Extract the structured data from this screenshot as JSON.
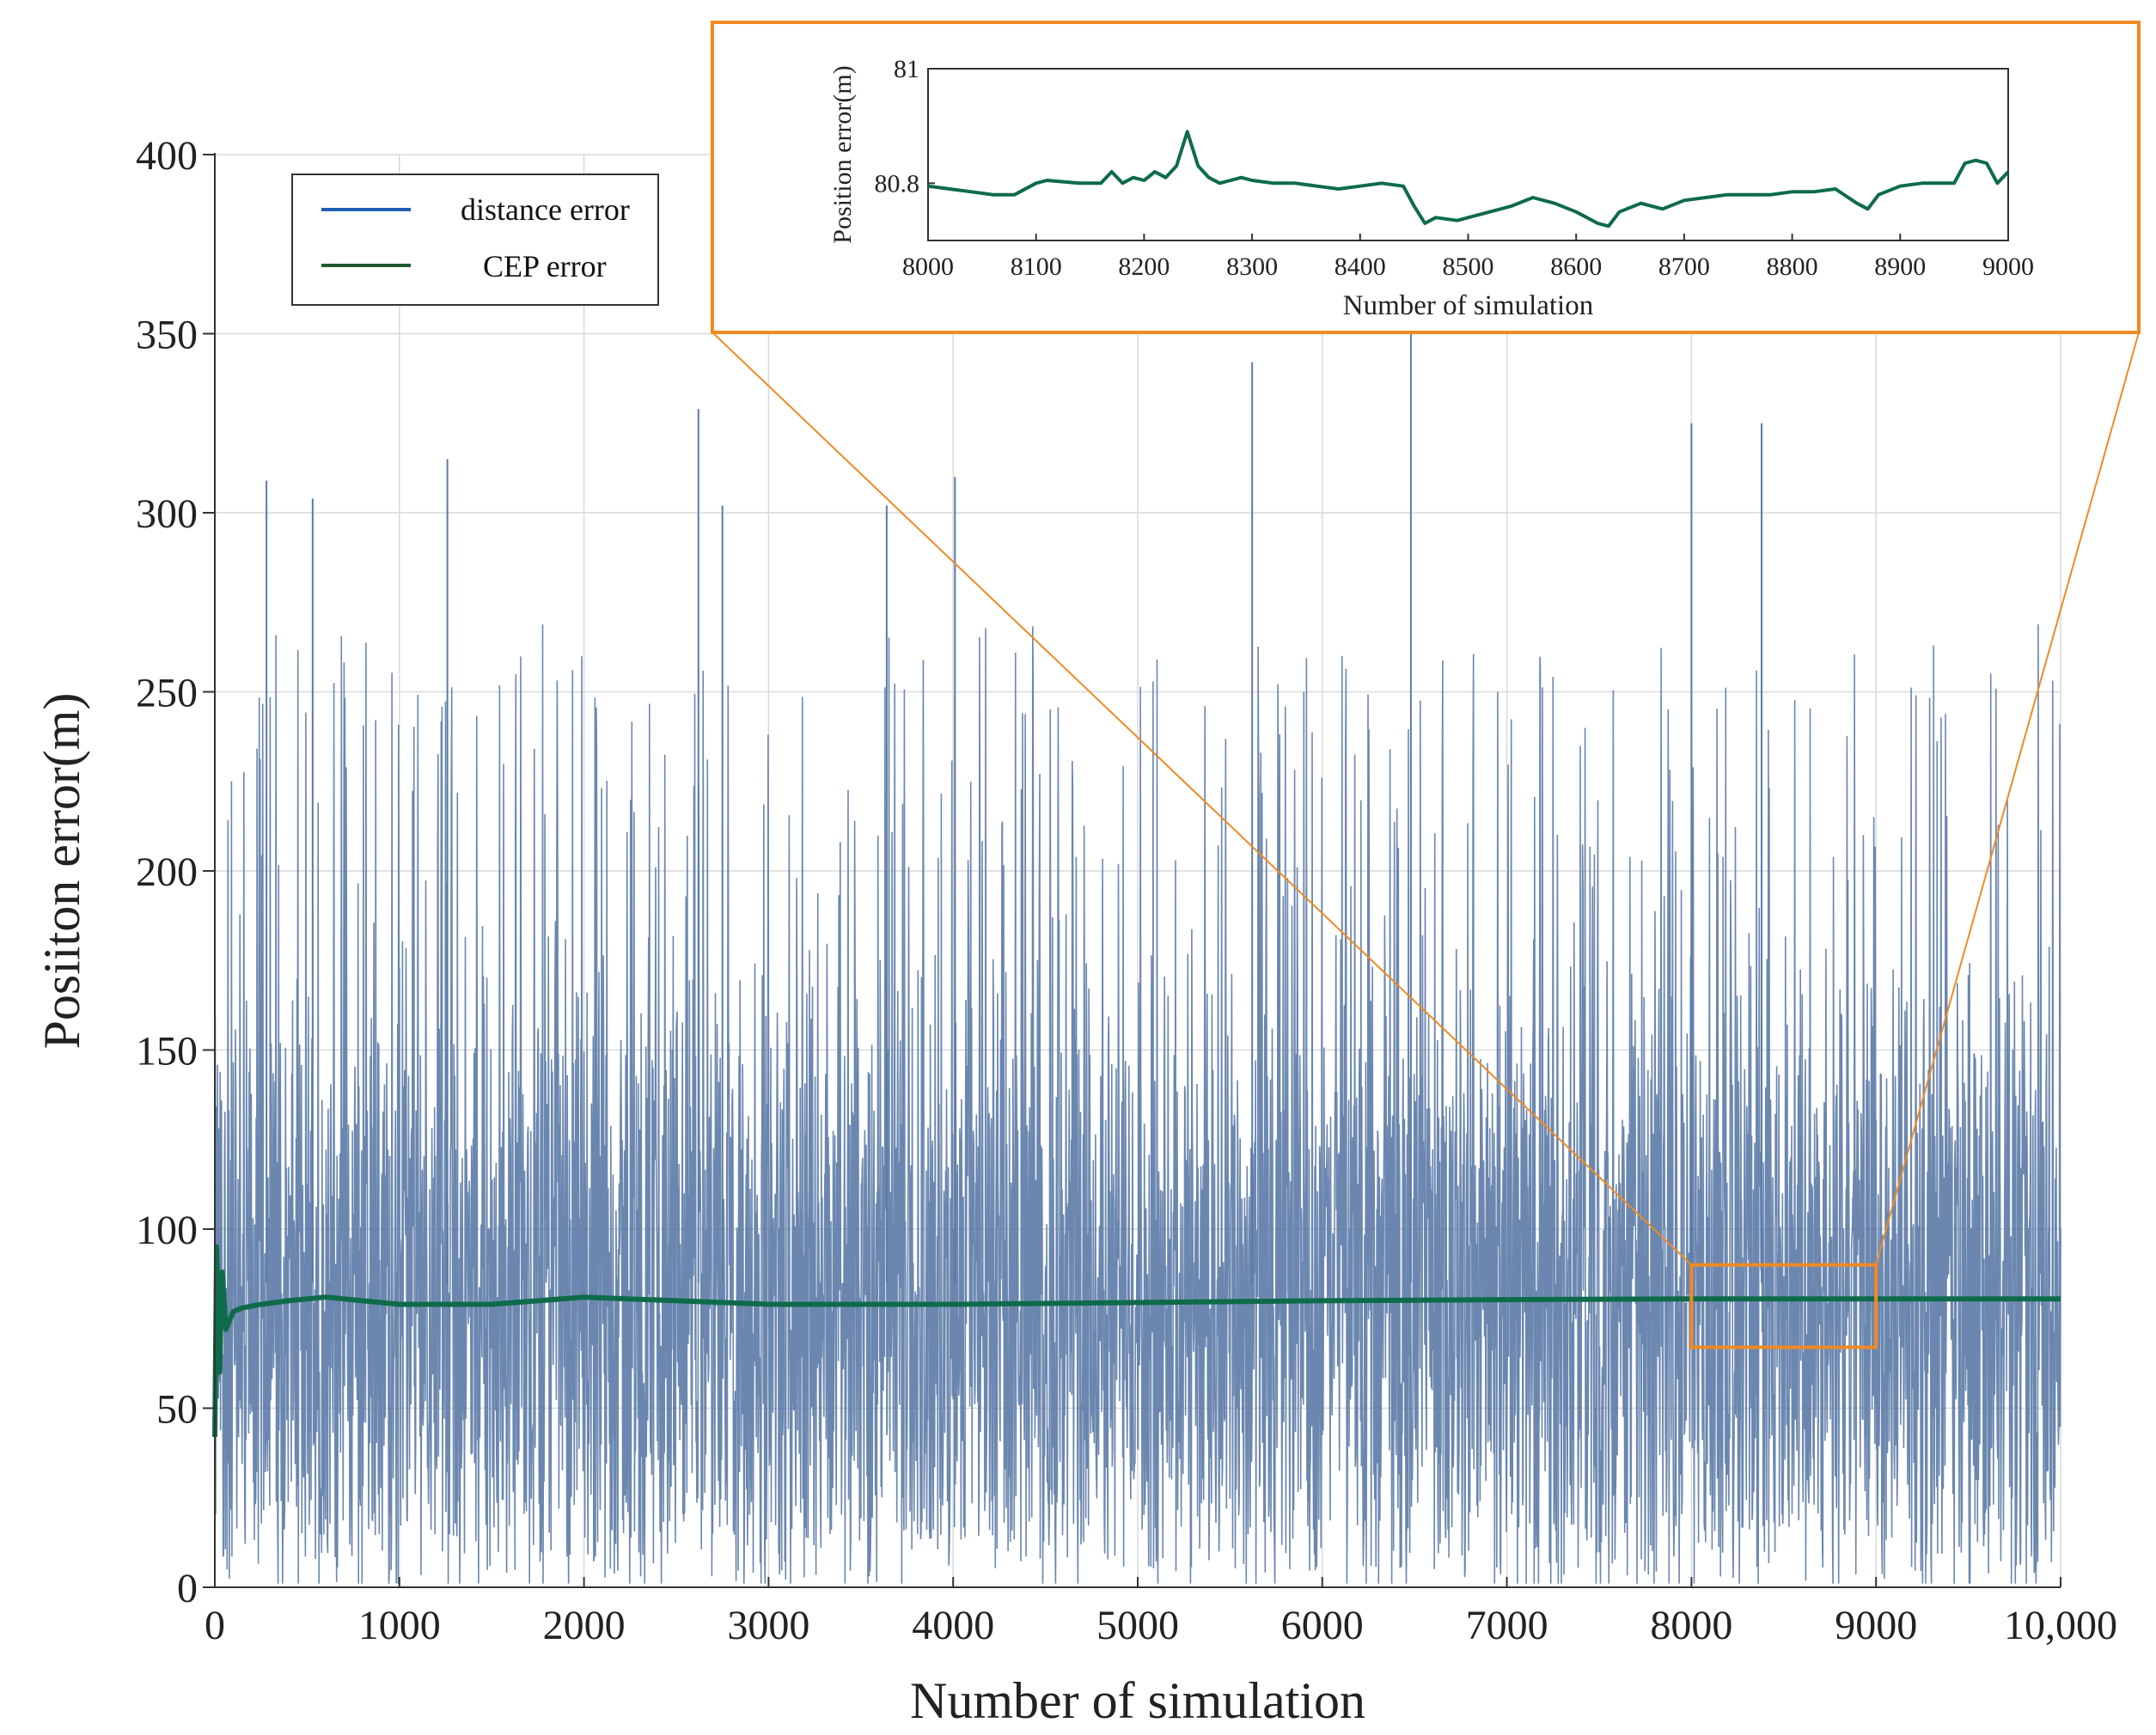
{
  "chart_data": [
    {
      "type": "line",
      "role": "main",
      "title": "",
      "xlabel": "Number of simulation",
      "ylabel": "Posiiton error(m)",
      "xlim": [
        0,
        10000
      ],
      "ylim": [
        0,
        400
      ],
      "xticks": [
        0,
        1000,
        2000,
        3000,
        4000,
        5000,
        6000,
        7000,
        8000,
        9000,
        10000
      ],
      "xtick_labels": [
        "0",
        "1000",
        "2000",
        "3000",
        "4000",
        "5000",
        "6000",
        "7000",
        "8000",
        "9000",
        "10,000"
      ],
      "yticks": [
        0,
        50,
        100,
        150,
        200,
        250,
        300,
        350,
        400
      ],
      "ytick_labels": [
        "0",
        "50",
        "100",
        "150",
        "200",
        "250",
        "300",
        "350",
        "400"
      ],
      "grid": true,
      "legend_position": "top-left",
      "series": [
        {
          "name": "distance error",
          "color": "#5b7aa6",
          "description": "noisy per-simulation distance error fluctuating between about 0 and 350 m",
          "range": [
            0,
            352
          ],
          "mean": 80,
          "peaks": [
            {
              "x": 280,
              "y": 309
            },
            {
              "x": 530,
              "y": 304
            },
            {
              "x": 1260,
              "y": 315
            },
            {
              "x": 2620,
              "y": 329
            },
            {
              "x": 2750,
              "y": 302
            },
            {
              "x": 3640,
              "y": 302
            },
            {
              "x": 4010,
              "y": 310
            },
            {
              "x": 5620,
              "y": 342
            },
            {
              "x": 6480,
              "y": 352
            },
            {
              "x": 8000,
              "y": 325
            },
            {
              "x": 8380,
              "y": 325
            }
          ]
        },
        {
          "name": "CEP error",
          "color": "#0e6b4a",
          "x": [
            0,
            10,
            25,
            40,
            60,
            100,
            150,
            250,
            400,
            600,
            800,
            1000,
            1500,
            2000,
            2500,
            3000,
            3500,
            4000,
            5000,
            6000,
            7000,
            8000,
            9000,
            10000
          ],
          "y": [
            42,
            95,
            60,
            88,
            72,
            77,
            78,
            79,
            80,
            81,
            80,
            79,
            79,
            81,
            80,
            79,
            79,
            79,
            79.5,
            80,
            80.3,
            80.5,
            80.5,
            80.5
          ]
        }
      ],
      "annotations": [
        {
          "type": "zoom-box",
          "x_range": [
            8000,
            9000
          ],
          "y_range": [
            67,
            90
          ],
          "color": "#f08a24"
        }
      ]
    },
    {
      "type": "line",
      "role": "inset",
      "title": "",
      "xlabel": "Number of simulation",
      "ylabel": "Position error(m)",
      "xlim": [
        8000,
        9000
      ],
      "ylim": [
        80.7,
        81.0
      ],
      "xticks": [
        8000,
        8100,
        8200,
        8300,
        8400,
        8500,
        8600,
        8700,
        8800,
        8900,
        9000
      ],
      "xtick_labels": [
        "8000",
        "8100",
        "8200",
        "8300",
        "8400",
        "8500",
        "8600",
        "8700",
        "8800",
        "8900",
        "9000"
      ],
      "yticks": [
        80.8,
        81.0
      ],
      "ytick_labels": [
        "80.8",
        "81"
      ],
      "grid": false,
      "series": [
        {
          "name": "CEP error",
          "color": "#0e6b4a",
          "x": [
            8000,
            8020,
            8040,
            8060,
            8080,
            8100,
            8110,
            8140,
            8160,
            8170,
            8180,
            8190,
            8200,
            8210,
            8220,
            8230,
            8235,
            8240,
            8245,
            8250,
            8260,
            8270,
            8280,
            8290,
            8300,
            8320,
            8340,
            8360,
            8380,
            8400,
            8420,
            8440,
            8450,
            8460,
            8470,
            8490,
            8500,
            8520,
            8540,
            8560,
            8580,
            8600,
            8620,
            8630,
            8640,
            8660,
            8680,
            8700,
            8720,
            8740,
            8760,
            8780,
            8800,
            8820,
            8840,
            8860,
            8870,
            8880,
            8900,
            8920,
            8940,
            8950,
            8960,
            8970,
            8980,
            8990,
            9000
          ],
          "y": [
            80.795,
            80.79,
            80.785,
            80.78,
            80.78,
            80.8,
            80.805,
            80.8,
            80.8,
            80.82,
            80.8,
            80.81,
            80.805,
            80.82,
            80.81,
            80.83,
            80.86,
            80.89,
            80.86,
            80.83,
            80.81,
            80.8,
            80.805,
            80.81,
            80.805,
            80.8,
            80.8,
            80.795,
            80.79,
            80.795,
            80.8,
            80.795,
            80.76,
            80.73,
            80.74,
            80.735,
            80.74,
            80.75,
            80.76,
            80.775,
            80.765,
            80.75,
            80.73,
            80.725,
            80.75,
            80.765,
            80.755,
            80.77,
            80.775,
            80.78,
            80.78,
            80.78,
            80.785,
            80.785,
            80.79,
            80.765,
            80.755,
            80.78,
            80.795,
            80.8,
            80.8,
            80.8,
            80.835,
            80.84,
            80.835,
            80.8,
            80.82
          ]
        }
      ]
    }
  ]
}
